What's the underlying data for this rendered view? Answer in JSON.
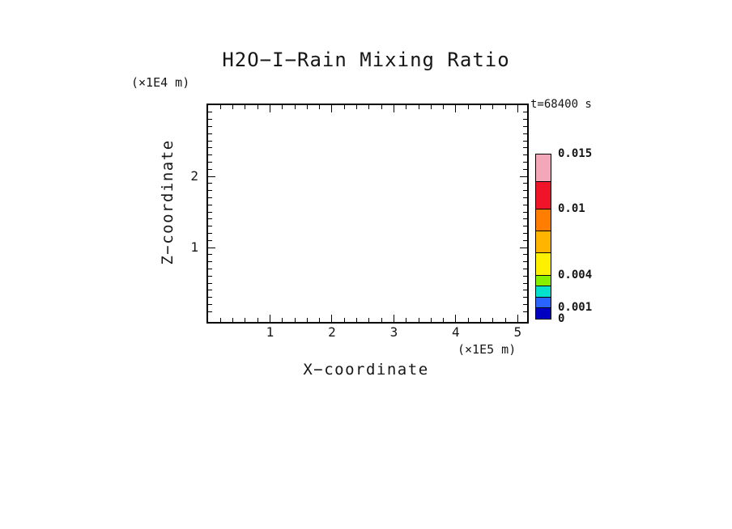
{
  "chart_data": {
    "type": "contour",
    "title": "H2O−I−Rain Mixing Ratio",
    "xlabel": "X−coordinate",
    "ylabel": "Z−coordinate",
    "x_unit": "(×1E5 m)",
    "y_unit": "(×1E4 m)",
    "time_label": "t=68400 s",
    "xlim": [
      0,
      5.1
    ],
    "ylim": [
      0,
      3.0
    ],
    "x_major_ticks": [
      1,
      2,
      3,
      4,
      5
    ],
    "x_minor_step": 0.2,
    "y_major_ticks": [
      1,
      2
    ],
    "y_minor_step": 0.1,
    "grid": false,
    "plot_area_content": "empty (no contour field visible at this time step)",
    "colorbar": {
      "levels": [
        0,
        0.001,
        0.002,
        0.003,
        0.004,
        0.006,
        0.008,
        0.01,
        0.0125,
        0.015
      ],
      "colors": [
        "#0000c3",
        "#2a64ff",
        "#00e0cd",
        "#86f000",
        "#fff000",
        "#ffb400",
        "#ff7d00",
        "#f01428",
        "#f2a8b9"
      ],
      "labels": [
        {
          "value": 0.015,
          "text": "0.015"
        },
        {
          "value": 0.01,
          "text": "0.01"
        },
        {
          "value": 0.004,
          "text": "0.004"
        },
        {
          "value": 0.001,
          "text": "0.001"
        },
        {
          "value": 0,
          "text": "0"
        }
      ]
    }
  }
}
